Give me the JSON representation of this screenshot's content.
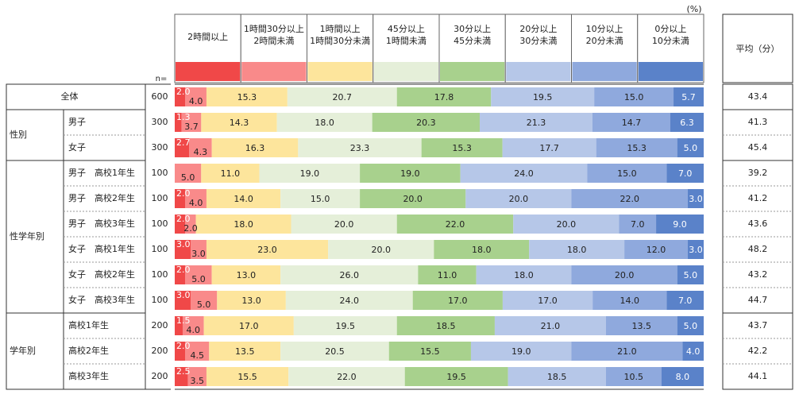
{
  "chart_data": {
    "type": "bar",
    "stacked": true,
    "orientation": "horizontal",
    "unit_label": "(%)",
    "n_header": "n=",
    "avg_header": "平均（分）",
    "legend": [
      {
        "label": "2時間以上",
        "color": "#f04848"
      },
      {
        "label": "1時間30分以上\n2時間未満",
        "color": "#f98a8a"
      },
      {
        "label": "1時間以上\n1時間30分未満",
        "color": "#fde59c"
      },
      {
        "label": "45分以上\n1時間未満",
        "color": "#e5efd9"
      },
      {
        "label": "30分以上\n45分未満",
        "color": "#a8d18d"
      },
      {
        "label": "20分以上\n30分未満",
        "color": "#b6c7e8"
      },
      {
        "label": "10分以上\n20分未満",
        "color": "#8fa9dd"
      },
      {
        "label": "0分以上\n10分未満",
        "color": "#5a82c9"
      }
    ],
    "groups": [
      {
        "label": "",
        "start": 0,
        "count": 1
      },
      {
        "label": "性別",
        "start": 1,
        "count": 2
      },
      {
        "label": "性学年別",
        "start": 3,
        "count": 6
      },
      {
        "label": "学年別",
        "start": 9,
        "count": 3
      }
    ],
    "rows": [
      {
        "label": "全体",
        "n": "600",
        "values": [
          2.0,
          4.0,
          15.3,
          20.7,
          17.8,
          19.5,
          15.0,
          5.7
        ],
        "labels": [
          "2.0",
          "4.0",
          "15.3",
          "20.7",
          "17.8",
          "19.5",
          "15.0",
          "5.7"
        ],
        "avg": "43.4"
      },
      {
        "label": "男子",
        "n": "300",
        "values": [
          1.3,
          3.7,
          14.3,
          18.0,
          20.3,
          21.3,
          14.7,
          6.3
        ],
        "labels": [
          "1.3",
          "3.7",
          "14.3",
          "18.0",
          "20.3",
          "21.3",
          "14.7",
          "6.3"
        ],
        "avg": "41.3"
      },
      {
        "label": "女子",
        "n": "300",
        "values": [
          2.7,
          4.3,
          16.3,
          23.3,
          15.3,
          17.7,
          15.3,
          5.0
        ],
        "labels": [
          "2.7",
          "4.3",
          "16.3",
          "23.3",
          "15.3",
          "17.7",
          "15.3",
          "5.0"
        ],
        "avg": "45.4"
      },
      {
        "label": "男子　高校1年生",
        "n": "100",
        "values": [
          0,
          5.0,
          11.0,
          19.0,
          19.0,
          24.0,
          15.0,
          7.0
        ],
        "labels": [
          "",
          "5.0",
          "11.0",
          "19.0",
          "19.0",
          "24.0",
          "15.0",
          "7.0"
        ],
        "avg": "39.2"
      },
      {
        "label": "男子　高校2年生",
        "n": "100",
        "values": [
          2.0,
          4.0,
          14.0,
          15.0,
          20.0,
          20.0,
          22.0,
          3.0
        ],
        "labels": [
          "2.0",
          "4.0",
          "14.0",
          "15.0",
          "20.0",
          "20.0",
          "22.0",
          "3.0"
        ],
        "avg": "41.2"
      },
      {
        "label": "男子　高校3年生",
        "n": "100",
        "values": [
          2.0,
          2.0,
          18.0,
          20.0,
          22.0,
          20.0,
          7.0,
          9.0
        ],
        "labels": [
          "2.0",
          "2.0",
          "18.0",
          "20.0",
          "22.0",
          "20.0",
          "7.0",
          "9.0"
        ],
        "avg": "43.6"
      },
      {
        "label": "女子　高校1年生",
        "n": "100",
        "values": [
          3.0,
          3.0,
          23.0,
          20.0,
          18.0,
          18.0,
          12.0,
          3.0
        ],
        "labels": [
          "3.0",
          "3.0",
          "23.0",
          "20.0",
          "18.0",
          "18.0",
          "12.0",
          "3.0"
        ],
        "avg": "48.2"
      },
      {
        "label": "女子　高校2年生",
        "n": "100",
        "values": [
          2.0,
          5.0,
          13.0,
          26.0,
          11.0,
          18.0,
          20.0,
          5.0
        ],
        "labels": [
          "2.0",
          "5.0",
          "13.0",
          "26.0",
          "11.0",
          "18.0",
          "20.0",
          "5.0"
        ],
        "avg": "43.2"
      },
      {
        "label": "女子　高校3年生",
        "n": "100",
        "values": [
          3.0,
          5.0,
          13.0,
          24.0,
          17.0,
          17.0,
          14.0,
          7.0
        ],
        "labels": [
          "3.0",
          "5.0",
          "13.0",
          "24.0",
          "17.0",
          "17.0",
          "14.0",
          "7.0"
        ],
        "avg": "44.7"
      },
      {
        "label": "高校1年生",
        "n": "200",
        "values": [
          1.5,
          4.0,
          17.0,
          19.5,
          18.5,
          21.0,
          13.5,
          5.0
        ],
        "labels": [
          "1.5",
          "4.0",
          "17.0",
          "19.5",
          "18.5",
          "21.0",
          "13.5",
          "5.0"
        ],
        "avg": "43.7"
      },
      {
        "label": "高校2年生",
        "n": "200",
        "values": [
          2.0,
          4.5,
          13.5,
          20.5,
          15.5,
          19.0,
          21.0,
          4.0
        ],
        "labels": [
          "2.0",
          "4.5",
          "13.5",
          "20.5",
          "15.5",
          "19.0",
          "21.0",
          "4.0"
        ],
        "avg": "42.2"
      },
      {
        "label": "高校3年生",
        "n": "200",
        "values": [
          2.5,
          3.5,
          15.5,
          22.0,
          19.5,
          18.5,
          10.5,
          8.0
        ],
        "labels": [
          "2.5",
          "3.5",
          "15.5",
          "22.0",
          "19.5",
          "18.5",
          "10.5",
          "8.0"
        ],
        "avg": "44.1"
      }
    ]
  }
}
